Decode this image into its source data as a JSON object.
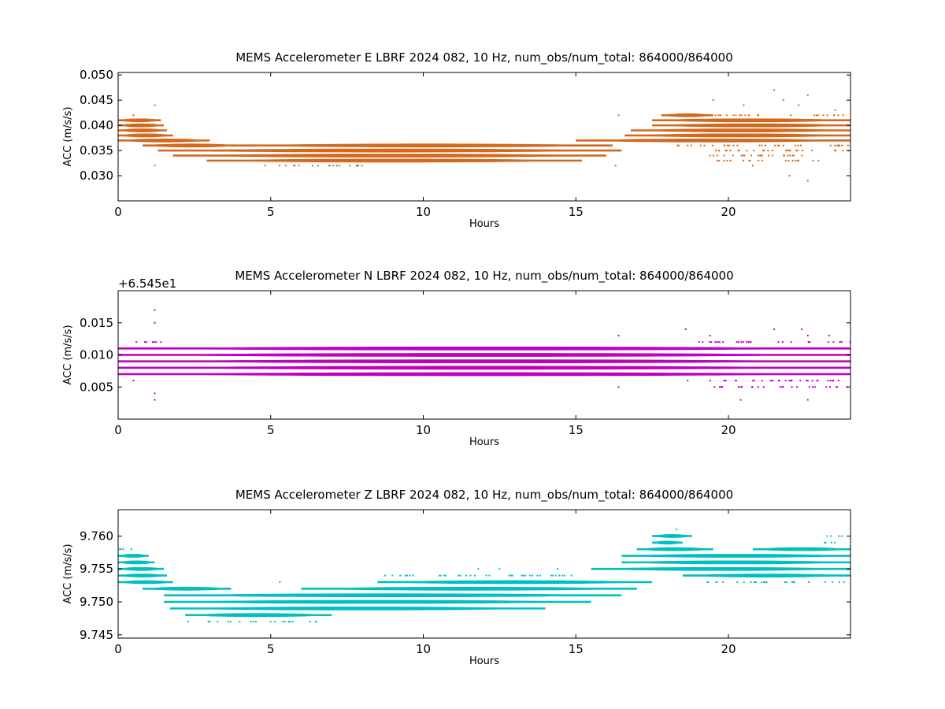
{
  "chart_data": [
    {
      "type": "scatter",
      "title": "MEMS Accelerometer E LBRF 2024 082, 10 Hz, num_obs/num_total: 864000/864000",
      "xlabel": "Hours",
      "ylabel": "ACC (m/s/s)",
      "xlim": [
        0,
        24
      ],
      "ylim": [
        0.025,
        0.0505
      ],
      "xticks": [
        0,
        5,
        10,
        15,
        20
      ],
      "xtick_labels": [
        "0",
        "5",
        "10",
        "15",
        "20"
      ],
      "yticks": [
        0.03,
        0.035,
        0.04,
        0.045,
        0.05
      ],
      "ytick_labels": [
        "0.030",
        "0.035",
        "0.040",
        "0.045",
        "0.050"
      ],
      "color": "#d2691e",
      "grid": false,
      "bands": [
        {
          "y": 0.041,
          "start": 0.0,
          "end": 1.4,
          "density": "dense"
        },
        {
          "y": 0.04,
          "start": 0.0,
          "end": 1.5,
          "density": "dense"
        },
        {
          "y": 0.039,
          "start": 0.0,
          "end": 1.6,
          "density": "dense"
        },
        {
          "y": 0.038,
          "start": 0.0,
          "end": 1.8,
          "density": "dense"
        },
        {
          "y": 0.037,
          "start": 0.0,
          "end": 3.0,
          "density": "dense"
        },
        {
          "y": 0.036,
          "start": 0.8,
          "end": 4.0,
          "density": "dense"
        },
        {
          "y": 0.036,
          "start": 4.0,
          "end": 16.2,
          "density": "dense"
        },
        {
          "y": 0.035,
          "start": 1.3,
          "end": 16.5,
          "density": "dense"
        },
        {
          "y": 0.034,
          "start": 1.8,
          "end": 16.0,
          "density": "dense"
        },
        {
          "y": 0.033,
          "start": 2.9,
          "end": 15.2,
          "density": "dense"
        },
        {
          "y": 0.037,
          "start": 15.0,
          "end": 24.0,
          "density": "dense"
        },
        {
          "y": 0.038,
          "start": 16.6,
          "end": 24.0,
          "density": "dense"
        },
        {
          "y": 0.039,
          "start": 16.8,
          "end": 24.0,
          "density": "dense"
        },
        {
          "y": 0.04,
          "start": 17.5,
          "end": 24.0,
          "density": "dense"
        },
        {
          "y": 0.041,
          "start": 17.5,
          "end": 24.0,
          "density": "dense"
        },
        {
          "y": 0.042,
          "start": 17.8,
          "end": 19.5,
          "density": "dense"
        },
        {
          "y": 0.042,
          "start": 19.5,
          "end": 23.8,
          "density": "sparse"
        },
        {
          "y": 0.036,
          "start": 18.0,
          "end": 24.0,
          "density": "sparse"
        },
        {
          "y": 0.035,
          "start": 19.2,
          "end": 24.0,
          "density": "sparse"
        },
        {
          "y": 0.034,
          "start": 19.3,
          "end": 23.2,
          "density": "sparse"
        },
        {
          "y": 0.033,
          "start": 19.5,
          "end": 23.0,
          "density": "sparse"
        },
        {
          "y": 0.032,
          "start": 4.7,
          "end": 8.2,
          "density": "sparse"
        }
      ],
      "outliers": [
        {
          "x": 1.2,
          "y": 0.044
        },
        {
          "x": 1.2,
          "y": 0.032
        },
        {
          "x": 0.5,
          "y": 0.042
        },
        {
          "x": 21.5,
          "y": 0.047
        },
        {
          "x": 22.6,
          "y": 0.046
        },
        {
          "x": 22.6,
          "y": 0.029
        },
        {
          "x": 19.5,
          "y": 0.045
        },
        {
          "x": 20.5,
          "y": 0.044
        },
        {
          "x": 21.8,
          "y": 0.045
        },
        {
          "x": 22.3,
          "y": 0.044
        },
        {
          "x": 16.3,
          "y": 0.032
        },
        {
          "x": 16.4,
          "y": 0.042
        },
        {
          "x": 23.5,
          "y": 0.043
        },
        {
          "x": 22.0,
          "y": 0.03
        },
        {
          "x": 20.8,
          "y": 0.032
        }
      ]
    },
    {
      "type": "scatter",
      "title": "MEMS Accelerometer N LBRF 2024 082, 10 Hz, num_obs/num_total: 864000/864000",
      "xlabel": "Hours",
      "ylabel": "ACC (m/s/s)",
      "xlim": [
        0,
        24
      ],
      "ylim": [
        0.0,
        0.02
      ],
      "y_offset_label": "+6.545e1",
      "xticks": [
        0,
        5,
        10,
        15,
        20
      ],
      "xtick_labels": [
        "0",
        "5",
        "10",
        "15",
        "20"
      ],
      "yticks": [
        0.005,
        0.01,
        0.015
      ],
      "ytick_labels": [
        "0.005",
        "0.010",
        "0.015"
      ],
      "color": "#bf00bf",
      "grid": false,
      "bands": [
        {
          "y": 0.011,
          "start": 0.0,
          "end": 24.0,
          "density": "dense"
        },
        {
          "y": 0.01,
          "start": 0.0,
          "end": 24.0,
          "density": "dense"
        },
        {
          "y": 0.009,
          "start": 0.0,
          "end": 24.0,
          "density": "dense"
        },
        {
          "y": 0.008,
          "start": 0.0,
          "end": 24.0,
          "density": "dense"
        },
        {
          "y": 0.007,
          "start": 0.0,
          "end": 24.0,
          "density": "dense"
        },
        {
          "y": 0.012,
          "start": 0.3,
          "end": 1.5,
          "density": "sparse"
        },
        {
          "y": 0.012,
          "start": 19.0,
          "end": 24.0,
          "density": "sparse"
        },
        {
          "y": 0.006,
          "start": 18.5,
          "end": 24.0,
          "density": "sparse"
        },
        {
          "y": 0.005,
          "start": 19.5,
          "end": 24.0,
          "density": "sparse"
        },
        {
          "y": 0.007,
          "start": 5.0,
          "end": 15.0,
          "density": "sparse"
        }
      ],
      "outliers": [
        {
          "x": 1.2,
          "y": 0.017
        },
        {
          "x": 1.2,
          "y": 0.015
        },
        {
          "x": 1.2,
          "y": 0.003
        },
        {
          "x": 1.2,
          "y": 0.004
        },
        {
          "x": 18.6,
          "y": 0.014
        },
        {
          "x": 19.4,
          "y": 0.013
        },
        {
          "x": 21.5,
          "y": 0.014
        },
        {
          "x": 22.4,
          "y": 0.014
        },
        {
          "x": 22.6,
          "y": 0.013
        },
        {
          "x": 20.4,
          "y": 0.003
        },
        {
          "x": 22.6,
          "y": 0.003
        },
        {
          "x": 16.4,
          "y": 0.005
        },
        {
          "x": 16.4,
          "y": 0.013
        },
        {
          "x": 23.3,
          "y": 0.013
        },
        {
          "x": 0.5,
          "y": 0.006
        }
      ]
    },
    {
      "type": "scatter",
      "title": "MEMS Accelerometer Z LBRF 2024 082, 10 Hz, num_obs/num_total: 864000/864000",
      "xlabel": "Hours",
      "ylabel": "ACC (m/s/s)",
      "xlim": [
        0,
        24
      ],
      "ylim": [
        9.7445,
        9.764
      ],
      "xticks": [
        0,
        5,
        10,
        15,
        20
      ],
      "xtick_labels": [
        "0",
        "5",
        "10",
        "15",
        "20"
      ],
      "yticks": [
        9.745,
        9.75,
        9.755,
        9.76
      ],
      "ytick_labels": [
        "9.745",
        "9.750",
        "9.755",
        "9.760"
      ],
      "color": "#00bfbf",
      "grid": false,
      "bands": [
        {
          "y": 9.758,
          "start": 0.0,
          "end": 0.7,
          "density": "sparse"
        },
        {
          "y": 9.757,
          "start": 0.0,
          "end": 1.0,
          "density": "dense"
        },
        {
          "y": 9.756,
          "start": 0.0,
          "end": 1.2,
          "density": "dense"
        },
        {
          "y": 9.755,
          "start": 0.0,
          "end": 1.5,
          "density": "dense"
        },
        {
          "y": 9.754,
          "start": 0.0,
          "end": 1.6,
          "density": "dense"
        },
        {
          "y": 9.753,
          "start": 0.0,
          "end": 1.8,
          "density": "dense"
        },
        {
          "y": 9.752,
          "start": 0.8,
          "end": 3.7,
          "density": "dense"
        },
        {
          "y": 9.752,
          "start": 6.0,
          "end": 17.0,
          "density": "dense"
        },
        {
          "y": 9.751,
          "start": 1.5,
          "end": 16.5,
          "density": "dense"
        },
        {
          "y": 9.75,
          "start": 1.5,
          "end": 15.5,
          "density": "dense"
        },
        {
          "y": 9.749,
          "start": 1.7,
          "end": 14.0,
          "density": "dense"
        },
        {
          "y": 9.748,
          "start": 2.2,
          "end": 7.0,
          "density": "dense"
        },
        {
          "y": 9.747,
          "start": 2.8,
          "end": 6.5,
          "density": "sparse"
        },
        {
          "y": 9.753,
          "start": 8.5,
          "end": 17.5,
          "density": "dense"
        },
        {
          "y": 9.754,
          "start": 8.5,
          "end": 15.0,
          "density": "sparse"
        },
        {
          "y": 9.755,
          "start": 15.5,
          "end": 24.0,
          "density": "dense"
        },
        {
          "y": 9.756,
          "start": 16.5,
          "end": 24.0,
          "density": "dense"
        },
        {
          "y": 9.757,
          "start": 16.5,
          "end": 24.0,
          "density": "dense"
        },
        {
          "y": 9.758,
          "start": 17.0,
          "end": 19.5,
          "density": "dense"
        },
        {
          "y": 9.758,
          "start": 20.8,
          "end": 24.0,
          "density": "dense"
        },
        {
          "y": 9.759,
          "start": 17.5,
          "end": 18.5,
          "density": "dense"
        },
        {
          "y": 9.76,
          "start": 17.5,
          "end": 18.8,
          "density": "dense"
        },
        {
          "y": 9.754,
          "start": 18.5,
          "end": 24.0,
          "density": "dense"
        },
        {
          "y": 9.753,
          "start": 19.0,
          "end": 24.0,
          "density": "sparse"
        },
        {
          "y": 9.76,
          "start": 23.0,
          "end": 23.7,
          "density": "sparse"
        },
        {
          "y": 9.759,
          "start": 23.0,
          "end": 23.8,
          "density": "sparse"
        }
      ],
      "outliers": [
        {
          "x": 18.3,
          "y": 9.761
        },
        {
          "x": 2.3,
          "y": 9.747
        },
        {
          "x": 11.8,
          "y": 9.755
        },
        {
          "x": 12.5,
          "y": 9.755
        },
        {
          "x": 5.3,
          "y": 9.753
        },
        {
          "x": 14.4,
          "y": 9.755
        }
      ]
    }
  ]
}
